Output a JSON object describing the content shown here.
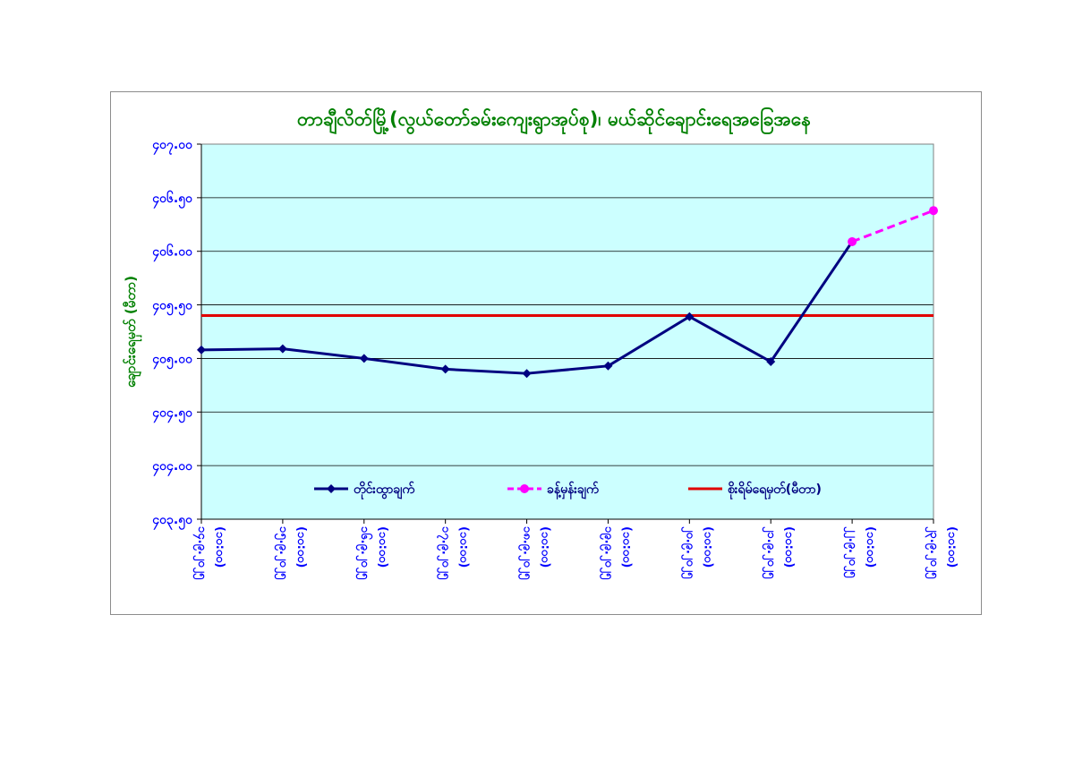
{
  "chart_data": {
    "type": "line",
    "title": "တာချီလိတ်မြို့(လွယ်တော်ခမ်းကျေးရွာအုပ်စု)၊ မယ်ဆိုင်ချောင်းရေအခြေအနေ",
    "xlabel": "",
    "ylabel": "ချောင်းရေမှတ် (မီတာ)",
    "ylim": [
      403.5,
      407.0
    ],
    "yticks": [
      "၄၀၇.၀၀",
      "၄၀၆.၅၀",
      "၄၀၆.၀၀",
      "၄၀၅.၅၀",
      "၄၀၅.၀၀",
      "၄၀၄.၅၀",
      "၄၀၄.၀၀",
      "၄၀၃.၅၀"
    ],
    "categories": [
      {
        "date": "၁၄.၉.၂၀၂၅",
        "time": "(၁၀:၀၀)"
      },
      {
        "date": "၁၅.၉.၂၀၂၅",
        "time": "(၁၀:၀၀)"
      },
      {
        "date": "၁၆.၉.၂၀၂၅",
        "time": "(၁၀:၀၀)"
      },
      {
        "date": "၁၇.၉.၂၀၂၅",
        "time": "(၁၀:၀၀)"
      },
      {
        "date": "၁၈.၉.၂၀၂၅",
        "time": "(၁၀:၀၀)"
      },
      {
        "date": "၁၉.၉.၂၀၂၅",
        "time": "(၁၀:၀၀)"
      },
      {
        "date": "၂၀.၉.၂၀၂၅",
        "time": "(၁၀:၀၀)"
      },
      {
        "date": "၂၁.၉.၂၀၂၅",
        "time": "(၁၀:၀၀)"
      },
      {
        "date": "၂၂.၉.၂၀၂၅",
        "time": "(၁၀:၀၀)"
      },
      {
        "date": "၂၃.၉.၂၀၂၅",
        "time": "(၁၀:၀၀)"
      }
    ],
    "series": [
      {
        "name": "တိုင်းထွာချက်",
        "color": "#000080",
        "marker": "diamond",
        "style": "solid",
        "values": [
          405.08,
          405.09,
          405.0,
          404.9,
          404.86,
          404.93,
          405.39,
          404.97,
          406.09,
          null
        ]
      },
      {
        "name": "ခန့်မှန်းချက်",
        "color": "#ff00ff",
        "marker": "circle",
        "style": "dashed",
        "values": [
          null,
          null,
          null,
          null,
          null,
          null,
          null,
          null,
          406.09,
          406.38
        ]
      }
    ],
    "reference_line": {
      "name": "စိုးရိမ်ရေမှတ်(မီတာ)",
      "value": 405.4,
      "color": "#e00000"
    },
    "colors": {
      "plot_background": "#ccffff",
      "title": "#008000",
      "ylabel": "#008000",
      "ticks": "#0000ff",
      "grid": "#000000"
    },
    "grid": true,
    "legend_placement": "bottom-inside"
  }
}
